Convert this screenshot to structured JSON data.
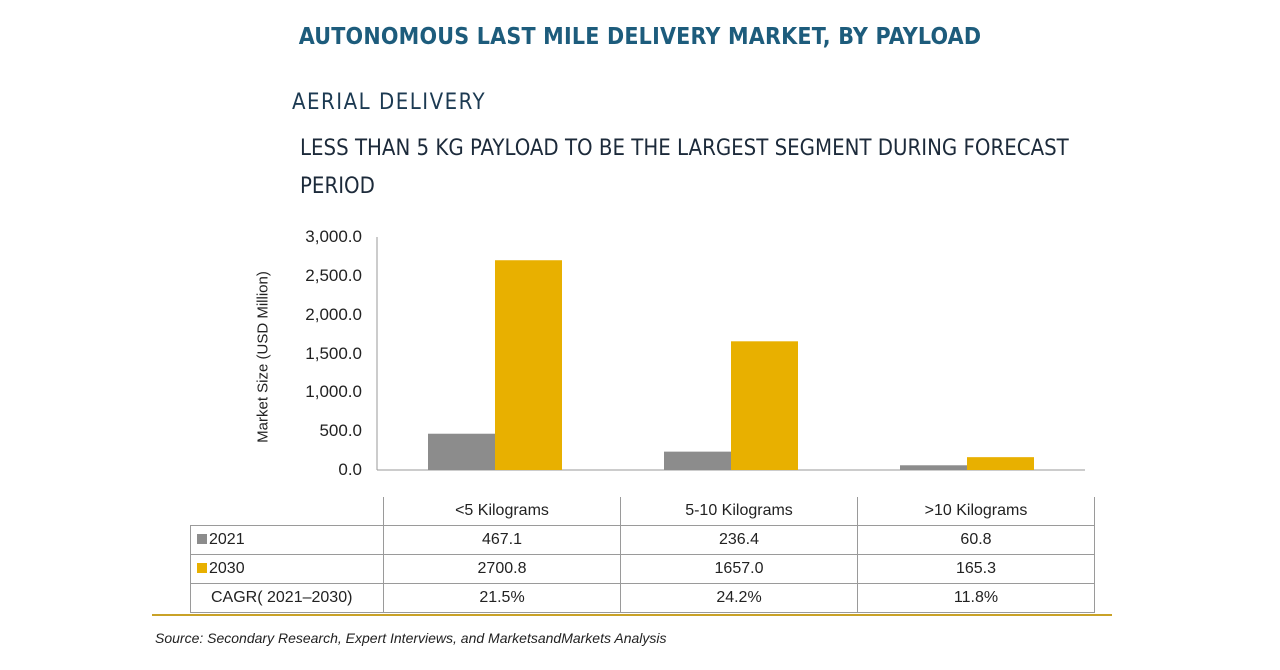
{
  "title": "AUTONOMOUS LAST MILE DELIVERY MARKET, BY PAYLOAD",
  "section": "AERIAL DELIVERY",
  "subtitle": "LESS THAN 5 KG PAYLOAD TO BE THE LARGEST SEGMENT DURING FORECAST PERIOD",
  "colors": {
    "series2021": "#8c8c8c",
    "series2030": "#e8b000",
    "title": "#1d5c7c",
    "rule": "#c9a227"
  },
  "chart_data": {
    "type": "bar",
    "ylabel": "Market Size (USD Million)",
    "ylim": [
      0,
      3000
    ],
    "yticks": [
      "3,000.0",
      "2,500.0",
      "2,000.0",
      "1,500.0",
      "1,000.0",
      "500.0",
      "0.0"
    ],
    "ytick_values": [
      3000,
      2500,
      2000,
      1500,
      1000,
      500,
      0
    ],
    "categories": [
      "<5 Kilograms",
      "5-10 Kilograms",
      ">10 Kilograms"
    ],
    "series": [
      {
        "name": "2021",
        "values": [
          467.1,
          236.4,
          60.8
        ],
        "labels": [
          "467.1",
          "236.4",
          "60.8"
        ]
      },
      {
        "name": "2030",
        "values": [
          2700.8,
          1657.0,
          165.3
        ],
        "labels": [
          "2700.8",
          "1657.0",
          "165.3"
        ]
      }
    ],
    "cagr": {
      "label": "CAGR( 2021–2030)",
      "values": [
        "21.5%",
        "24.2%",
        "11.8%"
      ]
    }
  },
  "source": "Source: Secondary Research, Expert Interviews, and MarketsandMarkets Analysis"
}
